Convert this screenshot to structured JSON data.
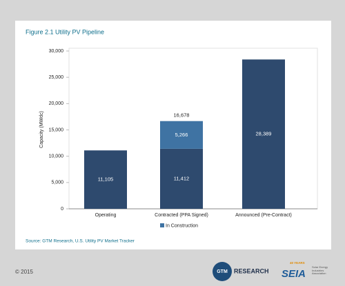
{
  "page": {
    "copyright": "© 2015",
    "logos": [
      "GTM",
      "RESEARCH",
      "SEIA",
      "40 YEARS",
      "Solar Energy Industries Association"
    ]
  },
  "chart_data": {
    "type": "bar",
    "stacked": true,
    "title": "Figure 2.1 Utility PV Pipeline",
    "y_label": "Capacity (MWdc)",
    "categories": [
      "Operating",
      "Contracted (PPA Signed)",
      "Announced (Pre-Contract)"
    ],
    "series": [
      {
        "color": "#2e4a6e",
        "values": [
          11105,
          11412,
          28389
        ],
        "value_labels": [
          "11,105",
          "11,412",
          "28,389"
        ]
      },
      {
        "name": "In Construction",
        "color": "#3f73a3",
        "values": [
          null,
          5266,
          null
        ],
        "value_labels": [
          null,
          "5,266",
          null
        ]
      }
    ],
    "totals": {
      "values": [
        null,
        16678,
        null
      ],
      "value_labels": [
        null,
        "16,678",
        null
      ]
    },
    "ylim": [
      0,
      30000
    ],
    "yticks": [
      0,
      {
        "value": 5000,
        "label": "5,000"
      },
      {
        "value": 10000,
        "label": "10,000"
      },
      {
        "value": 15000,
        "label": "15,000"
      },
      {
        "value": 20000,
        "label": "20,000"
      },
      {
        "value": 25000,
        "label": "25,000"
      },
      {
        "value": 30000,
        "label": "30,000"
      }
    ],
    "source": "Source:     GTM Research, U.S. Utility PV Market Tracker",
    "legend": "bottom"
  }
}
